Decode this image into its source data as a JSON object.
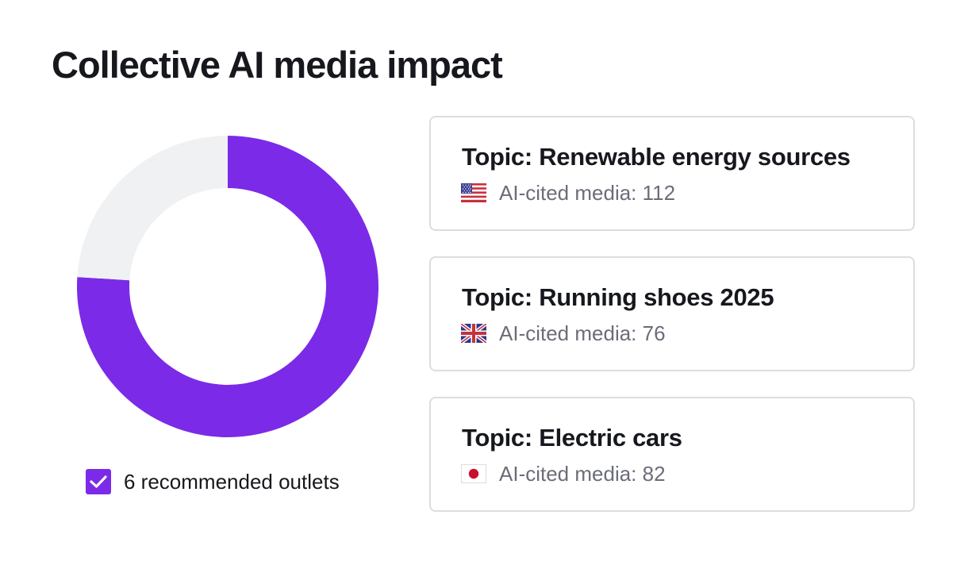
{
  "page": {
    "title": "Collective AI media impact"
  },
  "chart_data": {
    "type": "pie",
    "style": "donut",
    "slices": [
      {
        "label": "6 recommended outlets",
        "value": 0.76,
        "color": "#7b2ae8"
      },
      {
        "value": 0.24,
        "color": "#f0f1f3"
      }
    ]
  },
  "legend": {
    "label": "6 recommended outlets",
    "checked": true,
    "color": "#7b2ae8"
  },
  "cards": [
    {
      "title": "Topic: Renewable energy sources",
      "subtitle": "AI-cited media: 112",
      "flag": "us-flag-icon"
    },
    {
      "title": "Topic: Running shoes 2025",
      "subtitle": "AI-cited media: 76",
      "flag": "uk-flag-icon"
    },
    {
      "title": "Topic: Electric cars",
      "subtitle": "AI-cited media: 82",
      "flag": "japan-flag-icon"
    }
  ]
}
